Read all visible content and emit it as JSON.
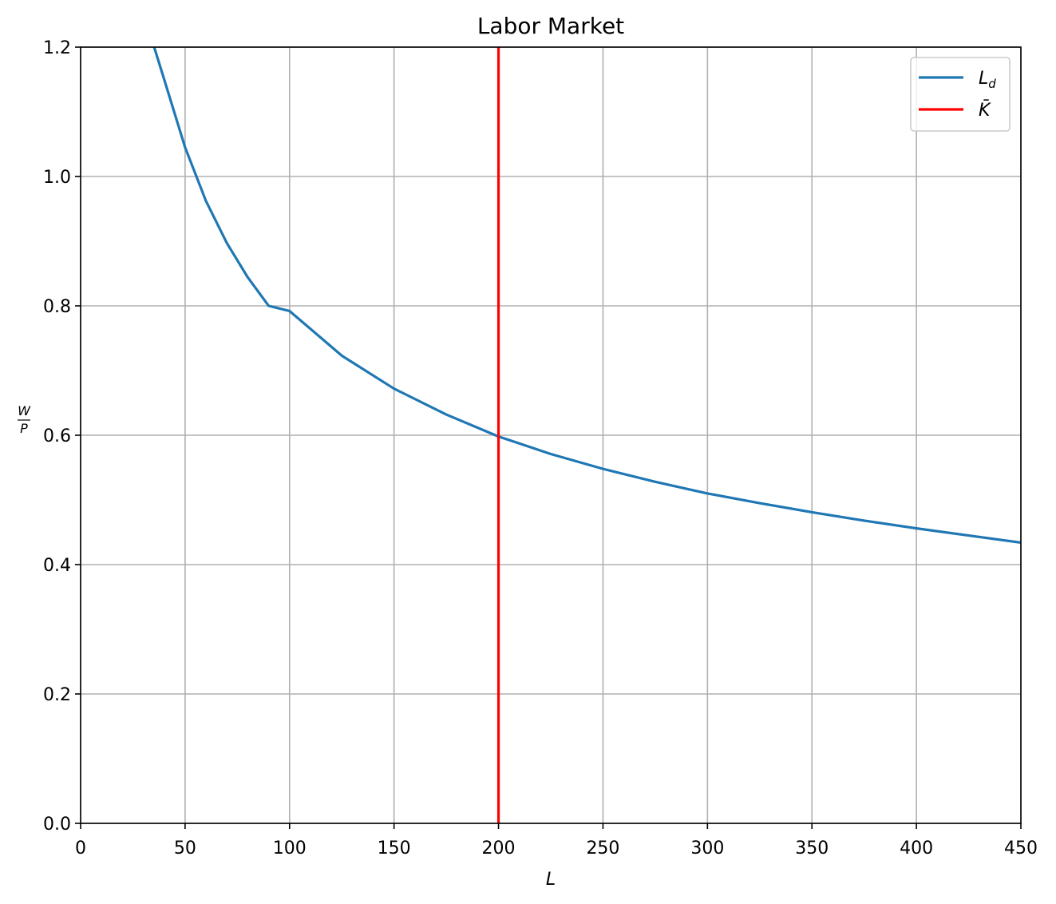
{
  "chart_data": {
    "type": "line",
    "title": "Labor Market",
    "xlabel": "L",
    "ylabel": {
      "numerator": "W",
      "denominator": "P"
    },
    "xlim": [
      0,
      450
    ],
    "ylim": [
      0,
      1.2
    ],
    "xticks": [
      0,
      50,
      100,
      150,
      200,
      250,
      300,
      350,
      400,
      450
    ],
    "yticks": [
      0.0,
      0.2,
      0.4,
      0.6,
      0.8,
      1.0,
      1.2
    ],
    "ytick_labels": [
      "0.0",
      "0.2",
      "0.4",
      "0.6",
      "0.8",
      "1.0",
      "1.2"
    ],
    "grid": true,
    "legend_position": "top-right",
    "series": [
      {
        "name": "L_d",
        "legend": {
          "main": "L",
          "sub": "d"
        },
        "kind": "curve",
        "color": "#1f77b4",
        "points": [
          [
            35.2,
            1.2
          ],
          [
            40,
            1.15
          ],
          [
            50,
            1.045
          ],
          [
            60,
            0.962
          ],
          [
            70,
            0.897
          ],
          [
            80,
            0.844
          ],
          [
            90,
            0.8
          ],
          [
            100,
            0.792
          ],
          [
            125,
            0.723
          ],
          [
            150,
            0.672
          ],
          [
            175,
            0.632
          ],
          [
            200,
            0.598
          ],
          [
            225,
            0.571
          ],
          [
            250,
            0.548
          ],
          [
            275,
            0.528
          ],
          [
            300,
            0.51
          ],
          [
            325,
            0.495
          ],
          [
            350,
            0.481
          ],
          [
            375,
            0.468
          ],
          [
            400,
            0.456
          ],
          [
            425,
            0.445
          ],
          [
            450,
            0.434
          ]
        ]
      },
      {
        "name": "K̄",
        "legend": {
          "main": "K̄"
        },
        "kind": "vertical-line",
        "color": "#ff0000",
        "x": 200
      }
    ]
  }
}
